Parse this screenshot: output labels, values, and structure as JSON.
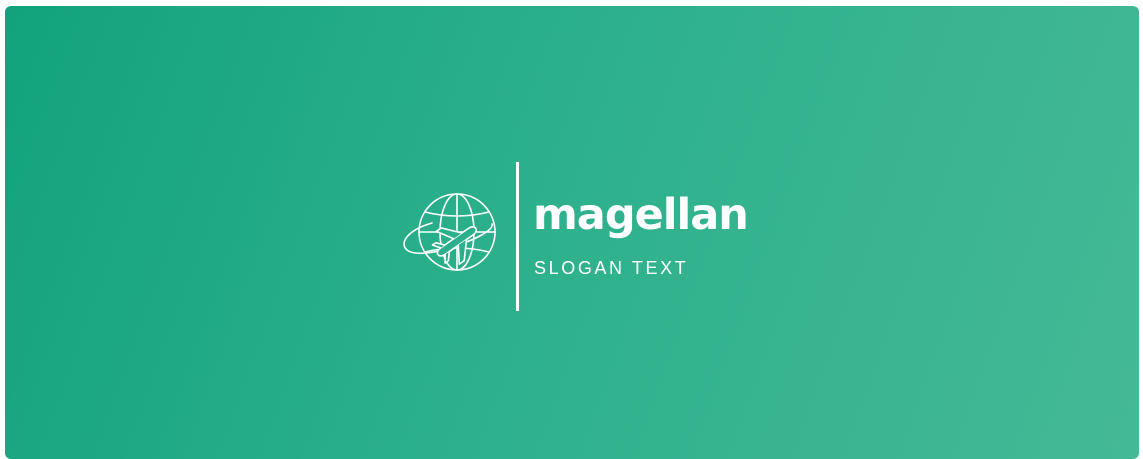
{
  "logo": {
    "name": "magellan",
    "slogan": "SLOGAN TEXT",
    "icon": "globe-with-airplane-icon"
  },
  "colors": {
    "gradient_start": "#12a37c",
    "gradient_end": "#45b996",
    "foreground": "#ffffff"
  }
}
